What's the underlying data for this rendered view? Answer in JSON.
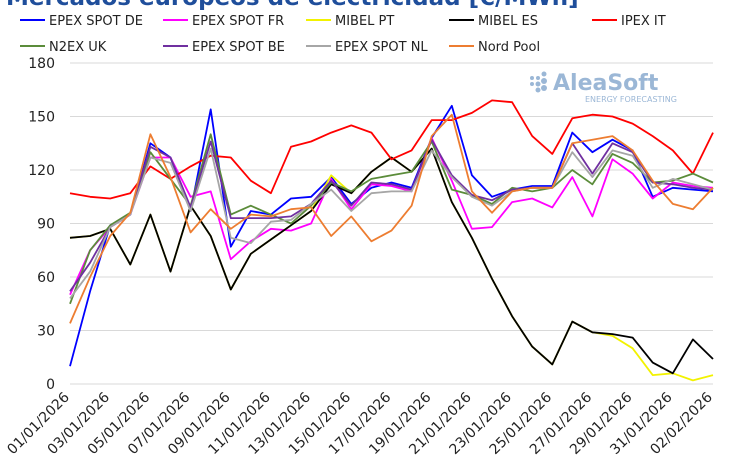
{
  "chart_data": {
    "type": "line",
    "title": "Mercados europeos de electricidad [€/MWh]",
    "logo": {
      "name": "AleaSoft",
      "tagline": "ENERGY FORECASTING"
    },
    "categories": [
      "01/01/2026",
      null,
      "03/01/2026",
      null,
      "05/01/2026",
      null,
      "07/01/2026",
      null,
      "09/01/2026",
      null,
      "11/01/2026",
      null,
      "13/01/2026",
      null,
      "15/01/2026",
      null,
      "17/01/2026",
      null,
      "19/01/2026",
      null,
      "21/01/2026",
      null,
      "23/01/2026",
      null,
      "25/01/2026",
      null,
      "27/01/2026",
      null,
      "29/01/2026",
      null,
      "31/01/2026",
      null,
      "02/02/2026"
    ],
    "ylim": [
      0,
      180
    ],
    "yticks": [
      0,
      30,
      60,
      90,
      120,
      150,
      180
    ],
    "grid": true,
    "series": [
      {
        "name": "EPEX SPOT DE",
        "color": "#0000ff",
        "values": [
          10,
          52,
          89,
          95,
          135,
          127,
          97,
          154,
          77,
          97,
          95,
          104,
          105,
          116,
          101,
          110,
          113,
          110,
          138,
          156,
          117,
          105,
          109,
          111,
          111,
          141,
          130,
          137,
          131,
          105,
          110,
          109,
          108
        ]
      },
      {
        "name": "EPEX SPOT FR",
        "color": "#ff00ff",
        "values": [
          50,
          75,
          88,
          95,
          127,
          127,
          105,
          108,
          70,
          80,
          87,
          86,
          90,
          115,
          98,
          112,
          111,
          108,
          138,
          114,
          87,
          88,
          102,
          104,
          99,
          116,
          94,
          126,
          118,
          104,
          113,
          111,
          110
        ]
      },
      {
        "name": "MIBEL PT",
        "color": "#f2f200",
        "values": [
          82,
          83,
          87,
          67,
          95,
          63,
          100,
          83,
          53,
          73,
          81,
          89,
          97,
          117,
          107,
          119,
          127,
          119,
          132,
          102,
          82,
          59,
          38,
          21,
          11,
          35,
          29,
          27,
          20,
          5,
          6,
          2,
          5
        ]
      },
      {
        "name": "MIBEL ES",
        "color": "#000000",
        "values": [
          82,
          83,
          87,
          67,
          95,
          63,
          100,
          83,
          53,
          73,
          81,
          89,
          97,
          112,
          107,
          119,
          127,
          119,
          132,
          102,
          82,
          59,
          38,
          21,
          11,
          35,
          29,
          28,
          26,
          12,
          6,
          25,
          14
        ]
      },
      {
        "name": "IPEX IT",
        "color": "#ff0000",
        "values": [
          107,
          105,
          104,
          107,
          122,
          115,
          122,
          128,
          127,
          114,
          107,
          133,
          136,
          141,
          145,
          141,
          126,
          131,
          148,
          148,
          152,
          159,
          158,
          139,
          129,
          149,
          151,
          150,
          146,
          139,
          131,
          118,
          141
        ]
      },
      {
        "name": "N2EX UK",
        "color": "#5b8c3a",
        "values": [
          45,
          75,
          89,
          96,
          130,
          115,
          100,
          140,
          95,
          100,
          95,
          90,
          100,
          113,
          108,
          115,
          117,
          119,
          136,
          109,
          106,
          101,
          110,
          108,
          110,
          120,
          112,
          129,
          124,
          113,
          114,
          118,
          113
        ]
      },
      {
        "name": "EPEX SPOT BE",
        "color": "#7030a0",
        "values": [
          52,
          68,
          88,
          95,
          133,
          127,
          99,
          136,
          93,
          93,
          93,
          94,
          101,
          114,
          100,
          113,
          112,
          109,
          137,
          117,
          106,
          103,
          109,
          110,
          110,
          135,
          118,
          135,
          130,
          113,
          112,
          110,
          109
        ]
      },
      {
        "name": "EPEX SPOT NL",
        "color": "#a6a6a6",
        "values": [
          48,
          63,
          88,
          95,
          127,
          124,
          97,
          132,
          82,
          79,
          91,
          92,
          101,
          109,
          97,
          107,
          108,
          108,
          131,
          116,
          105,
          100,
          108,
          110,
          110,
          130,
          116,
          131,
          128,
          110,
          115,
          112,
          109
        ]
      },
      {
        "name": "Nord Pool",
        "color": "#ed7d31",
        "values": [
          34,
          60,
          83,
          96,
          140,
          116,
          85,
          98,
          87,
          95,
          94,
          98,
          99,
          83,
          94,
          80,
          86,
          100,
          139,
          151,
          108,
          96,
          108,
          110,
          110,
          135,
          137,
          139,
          131,
          114,
          101,
          98,
          110
        ]
      }
    ]
  }
}
